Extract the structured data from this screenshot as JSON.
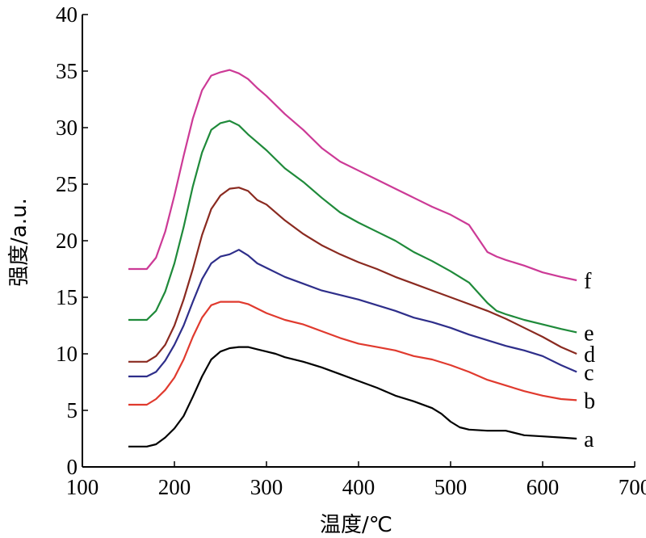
{
  "chart_data": {
    "type": "line",
    "xlabel": "温度/℃",
    "ylabel": "强度/a.u.",
    "xlim": [
      100,
      700
    ],
    "ylim": [
      0,
      40
    ],
    "xticks": [
      100,
      200,
      300,
      400,
      500,
      600,
      700
    ],
    "yticks": [
      0,
      5,
      10,
      15,
      20,
      25,
      30,
      35,
      40
    ],
    "grid": false,
    "legend": "none",
    "series": [
      {
        "name": "a",
        "color": "#000000",
        "x": [
          150,
          170,
          180,
          190,
          200,
          210,
          220,
          230,
          240,
          250,
          260,
          270,
          280,
          290,
          300,
          310,
          320,
          340,
          360,
          380,
          400,
          420,
          440,
          460,
          480,
          490,
          500,
          510,
          520,
          540,
          550,
          560,
          580,
          600,
          620,
          637
        ],
        "y": [
          1.8,
          1.8,
          2.0,
          2.6,
          3.4,
          4.5,
          6.2,
          8.0,
          9.5,
          10.2,
          10.5,
          10.6,
          10.6,
          10.4,
          10.2,
          10.0,
          9.7,
          9.3,
          8.8,
          8.2,
          7.6,
          7.0,
          6.3,
          5.8,
          5.2,
          4.7,
          4.0,
          3.5,
          3.3,
          3.2,
          3.2,
          3.2,
          2.8,
          2.7,
          2.6,
          2.5
        ]
      },
      {
        "name": "b",
        "color": "#e03a2e",
        "x": [
          150,
          170,
          180,
          190,
          200,
          210,
          220,
          230,
          240,
          250,
          260,
          270,
          280,
          290,
          300,
          320,
          340,
          360,
          380,
          400,
          420,
          440,
          460,
          480,
          500,
          520,
          540,
          560,
          580,
          600,
          620,
          637
        ],
        "y": [
          5.5,
          5.5,
          6.0,
          6.8,
          7.9,
          9.5,
          11.5,
          13.2,
          14.3,
          14.6,
          14.6,
          14.6,
          14.4,
          14.0,
          13.6,
          13.0,
          12.6,
          12.0,
          11.4,
          10.9,
          10.6,
          10.3,
          9.8,
          9.5,
          9.0,
          8.4,
          7.7,
          7.2,
          6.7,
          6.3,
          6.0,
          5.9
        ]
      },
      {
        "name": "c",
        "color": "#2e2e8a",
        "x": [
          150,
          170,
          180,
          190,
          200,
          210,
          220,
          230,
          240,
          250,
          260,
          270,
          280,
          290,
          300,
          320,
          340,
          360,
          380,
          400,
          420,
          440,
          460,
          480,
          500,
          520,
          540,
          560,
          580,
          600,
          620,
          637
        ],
        "y": [
          8.0,
          8.0,
          8.4,
          9.4,
          10.8,
          12.5,
          14.6,
          16.6,
          18.0,
          18.6,
          18.8,
          19.2,
          18.7,
          18.0,
          17.6,
          16.8,
          16.2,
          15.6,
          15.2,
          14.8,
          14.3,
          13.8,
          13.2,
          12.8,
          12.3,
          11.7,
          11.2,
          10.7,
          10.3,
          9.8,
          9.0,
          8.4
        ]
      },
      {
        "name": "d",
        "color": "#8a2a20",
        "x": [
          150,
          170,
          180,
          190,
          200,
          210,
          220,
          230,
          240,
          250,
          260,
          270,
          280,
          290,
          300,
          320,
          340,
          360,
          380,
          400,
          420,
          440,
          460,
          480,
          500,
          520,
          540,
          560,
          580,
          600,
          620,
          637
        ],
        "y": [
          9.3,
          9.3,
          9.8,
          10.8,
          12.5,
          14.8,
          17.5,
          20.5,
          22.8,
          24.0,
          24.6,
          24.7,
          24.4,
          23.6,
          23.2,
          21.8,
          20.6,
          19.6,
          18.8,
          18.1,
          17.5,
          16.8,
          16.2,
          15.6,
          15.0,
          14.4,
          13.8,
          13.1,
          12.3,
          11.5,
          10.6,
          10.0
        ]
      },
      {
        "name": "e",
        "color": "#1f8a3a",
        "x": [
          150,
          170,
          180,
          190,
          200,
          210,
          220,
          230,
          240,
          250,
          260,
          270,
          280,
          290,
          300,
          320,
          340,
          360,
          380,
          400,
          420,
          440,
          460,
          480,
          500,
          520,
          540,
          550,
          560,
          580,
          600,
          620,
          637
        ],
        "y": [
          13.0,
          13.0,
          13.8,
          15.5,
          18.0,
          21.2,
          24.8,
          27.8,
          29.8,
          30.4,
          30.6,
          30.2,
          29.4,
          28.7,
          28.0,
          26.4,
          25.2,
          23.8,
          22.5,
          21.6,
          20.8,
          20.0,
          19.0,
          18.2,
          17.3,
          16.3,
          14.5,
          13.8,
          13.5,
          13.0,
          12.6,
          12.2,
          11.9
        ]
      },
      {
        "name": "f",
        "color": "#cc3a96",
        "x": [
          150,
          170,
          180,
          190,
          200,
          210,
          220,
          230,
          240,
          250,
          260,
          270,
          280,
          290,
          300,
          320,
          340,
          360,
          380,
          400,
          420,
          440,
          460,
          480,
          500,
          520,
          540,
          550,
          560,
          580,
          600,
          620,
          637
        ],
        "y": [
          17.5,
          17.5,
          18.5,
          20.8,
          24.0,
          27.5,
          30.8,
          33.3,
          34.6,
          34.9,
          35.1,
          34.8,
          34.3,
          33.5,
          32.8,
          31.2,
          29.8,
          28.2,
          27.0,
          26.2,
          25.4,
          24.6,
          23.8,
          23.0,
          22.3,
          21.4,
          19.0,
          18.6,
          18.3,
          17.8,
          17.2,
          16.8,
          16.5
        ]
      }
    ]
  }
}
